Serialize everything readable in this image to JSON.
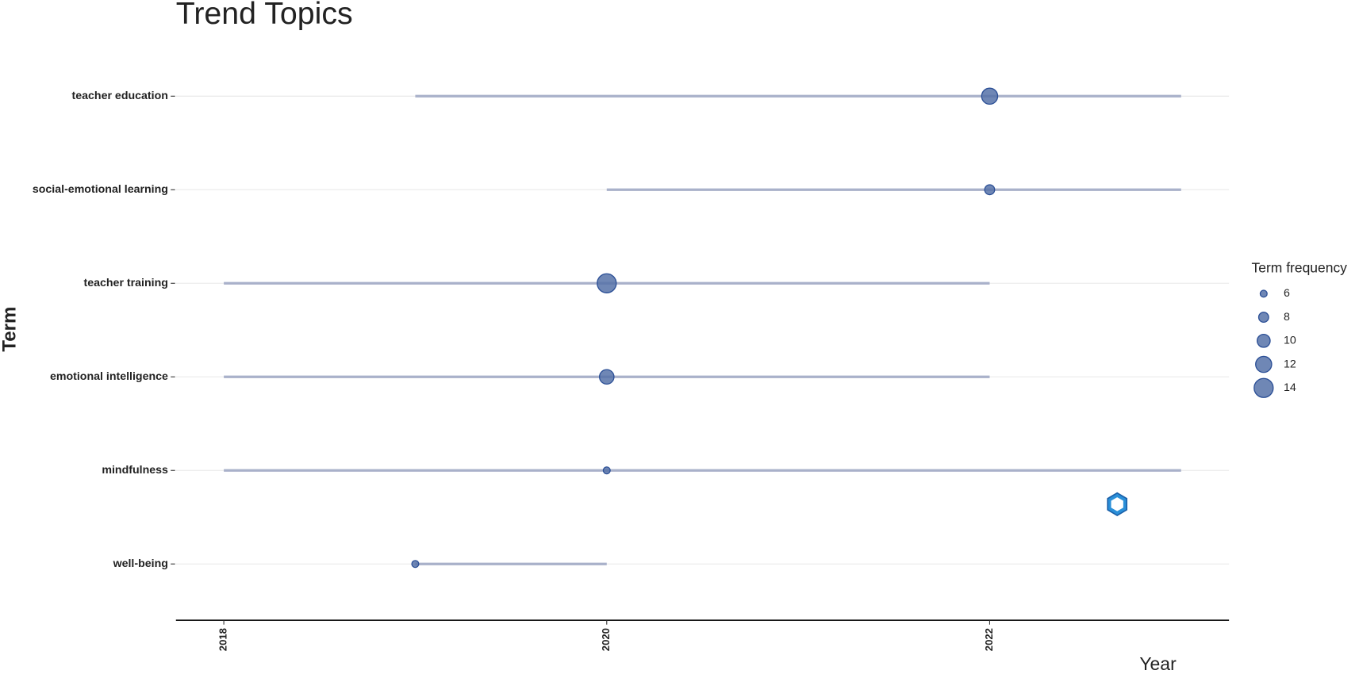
{
  "chart_data": {
    "type": "trend",
    "title": "Trend Topics",
    "x_label": "Year",
    "y_label": "Term",
    "categories": [
      "teacher education",
      "social-emotional learning",
      "teacher training",
      "emotional intelligence",
      "mindfulness",
      "well-being"
    ],
    "start": [
      2019,
      2020,
      2018,
      2018,
      2018,
      2019
    ],
    "median": [
      2022,
      2022,
      2020,
      2020,
      2020,
      2019
    ],
    "end": [
      2023,
      2023,
      2022,
      2022,
      2023,
      2020
    ],
    "frequency": [
      12,
      8,
      14,
      11,
      6,
      6
    ],
    "xlim": [
      2017.75,
      2023.25
    ],
    "xticks": [
      2018,
      2020,
      2022
    ],
    "legend_title": "Term frequency",
    "size_legend": [
      6,
      8,
      10,
      12,
      14
    ],
    "color": "#5672a8",
    "line_color": "#a9b1ca",
    "grid": true
  }
}
